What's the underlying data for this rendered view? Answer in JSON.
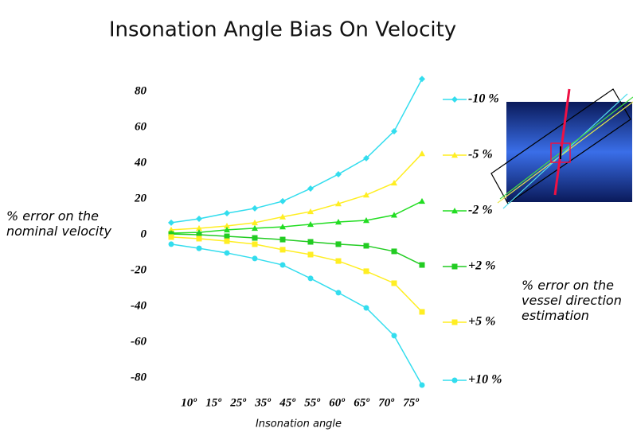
{
  "chart_data": {
    "type": "line",
    "title": "Insonation Angle Bias On Velocity",
    "xlabel": "Insonation angle",
    "ylabel": "% error on the nominal velocity",
    "annotation": "% error on the vessel direction estimation",
    "categories": [
      "10º",
      "15º",
      "25º",
      "35º",
      "45º",
      "55º",
      "60º",
      "65º",
      "70º",
      "75º"
    ],
    "ylim": [
      -90,
      90
    ],
    "yticks": [
      80,
      60,
      40,
      20,
      0,
      -20,
      -40,
      -60,
      -80
    ],
    "series": [
      {
        "name": "-10 %",
        "color": "#33ddee",
        "marker": "diamond",
        "values": [
          6.7,
          8.9,
          12,
          14.7,
          18.7,
          25.8,
          33.8,
          42.7,
          57.8,
          87
        ]
      },
      {
        "name": "-5 %",
        "color": "#ffee22",
        "marker": "triangle",
        "values": [
          2.7,
          3.6,
          4.9,
          6.7,
          10,
          12.9,
          17.3,
          22.2,
          28.9,
          45.3
        ]
      },
      {
        "name": "-2 %",
        "color": "#22dd22",
        "marker": "triangle",
        "values": [
          0.9,
          1.3,
          2.7,
          3.6,
          4.4,
          5.8,
          7.1,
          8,
          11,
          18.7
        ]
      },
      {
        "name": "+2 %",
        "color": "#22cc22",
        "marker": "square",
        "values": [
          0.4,
          0,
          -0.9,
          -1.8,
          -2.7,
          -4,
          -5.3,
          -6.2,
          -9.3,
          -16.9
        ]
      },
      {
        "name": "+5 %",
        "color": "#ffee22",
        "marker": "square",
        "values": [
          -1.3,
          -2.2,
          -3.6,
          -5.3,
          -8.4,
          -11.1,
          -14.7,
          -20.4,
          -27.1,
          -43.1
        ]
      },
      {
        "name": "+10 %",
        "color": "#33ddee",
        "marker": "circle",
        "values": [
          -5.3,
          -7.6,
          -10.2,
          -13.3,
          -16.9,
          -24.4,
          -32.4,
          -40.9,
          -56.4,
          -84
        ]
      }
    ]
  }
}
